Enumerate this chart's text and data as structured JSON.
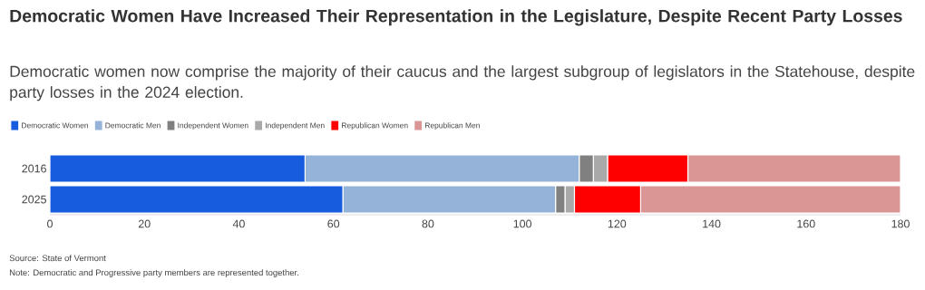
{
  "chart_data": {
    "type": "bar",
    "orientation": "horizontal",
    "stacked": true,
    "title": "Democratic Women Have Increased Their Representation in the Legislature, Despite Recent Party Losses",
    "subtitle": "Democratic women now comprise the majority of their caucus and the largest subgroup of legislators in the Statehouse, despite party losses in the 2024 election.",
    "categories": [
      "2016",
      "2025"
    ],
    "series": [
      {
        "name": "Democratic Women",
        "color": "#175cdf",
        "values": [
          54,
          62
        ]
      },
      {
        "name": "Democratic Men",
        "color": "#95b3d9",
        "values": [
          58,
          45
        ]
      },
      {
        "name": "Independent Women",
        "color": "#808080",
        "values": [
          3,
          2
        ]
      },
      {
        "name": "Independent Men",
        "color": "#a9a9a9",
        "values": [
          3,
          2
        ]
      },
      {
        "name": "Republican Women",
        "color": "#ff0000",
        "values": [
          17,
          14
        ]
      },
      {
        "name": "Republican Men",
        "color": "#d99694",
        "values": [
          45,
          55
        ]
      }
    ],
    "xlim": [
      0,
      180
    ],
    "xticks": [
      0,
      20,
      40,
      60,
      80,
      100,
      120,
      140,
      160,
      180
    ],
    "legend": "top left",
    "grid": false,
    "annotations": [
      "Source: State of Vermont",
      "Note: Democratic and Progressive party members are represented together."
    ]
  }
}
